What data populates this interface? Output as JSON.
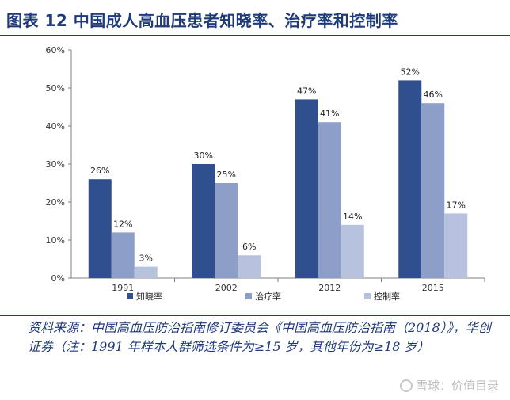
{
  "figure": {
    "title": "图表 12  中国成人高血压患者知晓率、治疗率和控制率"
  },
  "colors": {
    "title": "#1f3a7a",
    "series": [
      "#2f4f8f",
      "#8d9fc8",
      "#b7c3de"
    ]
  },
  "chart_data": {
    "type": "bar",
    "categories": [
      "1991",
      "2002",
      "2012",
      "2015"
    ],
    "series": [
      {
        "name": "知晓率",
        "values": [
          26,
          30,
          47,
          52
        ]
      },
      {
        "name": "治疗率",
        "values": [
          12,
          25,
          41,
          46
        ]
      },
      {
        "name": "控制率",
        "values": [
          3,
          6,
          14,
          17
        ]
      }
    ],
    "value_labels": [
      [
        "26%",
        "30%",
        "47%",
        "52%"
      ],
      [
        "12%",
        "25%",
        "41%",
        "46%"
      ],
      [
        "3%",
        "6%",
        "14%",
        "17%"
      ]
    ],
    "ylim": [
      0,
      60
    ],
    "yticks": [
      0,
      10,
      20,
      30,
      40,
      50,
      60
    ],
    "ytick_labels": [
      "0%",
      "10%",
      "20%",
      "30%",
      "40%",
      "50%",
      "60%"
    ],
    "xlabel": "",
    "ylabel": "",
    "legend_position": "bottom",
    "grid": false
  },
  "source": {
    "text": "资料来源：中国高血压防治指南修订委员会《中国高血压防治指南（2018）》，华创证券（注：1991 年样本人群筛选条件为≥15 岁，其他年份为≥18 岁）"
  },
  "watermark": {
    "text": "雪球：价值目录"
  }
}
